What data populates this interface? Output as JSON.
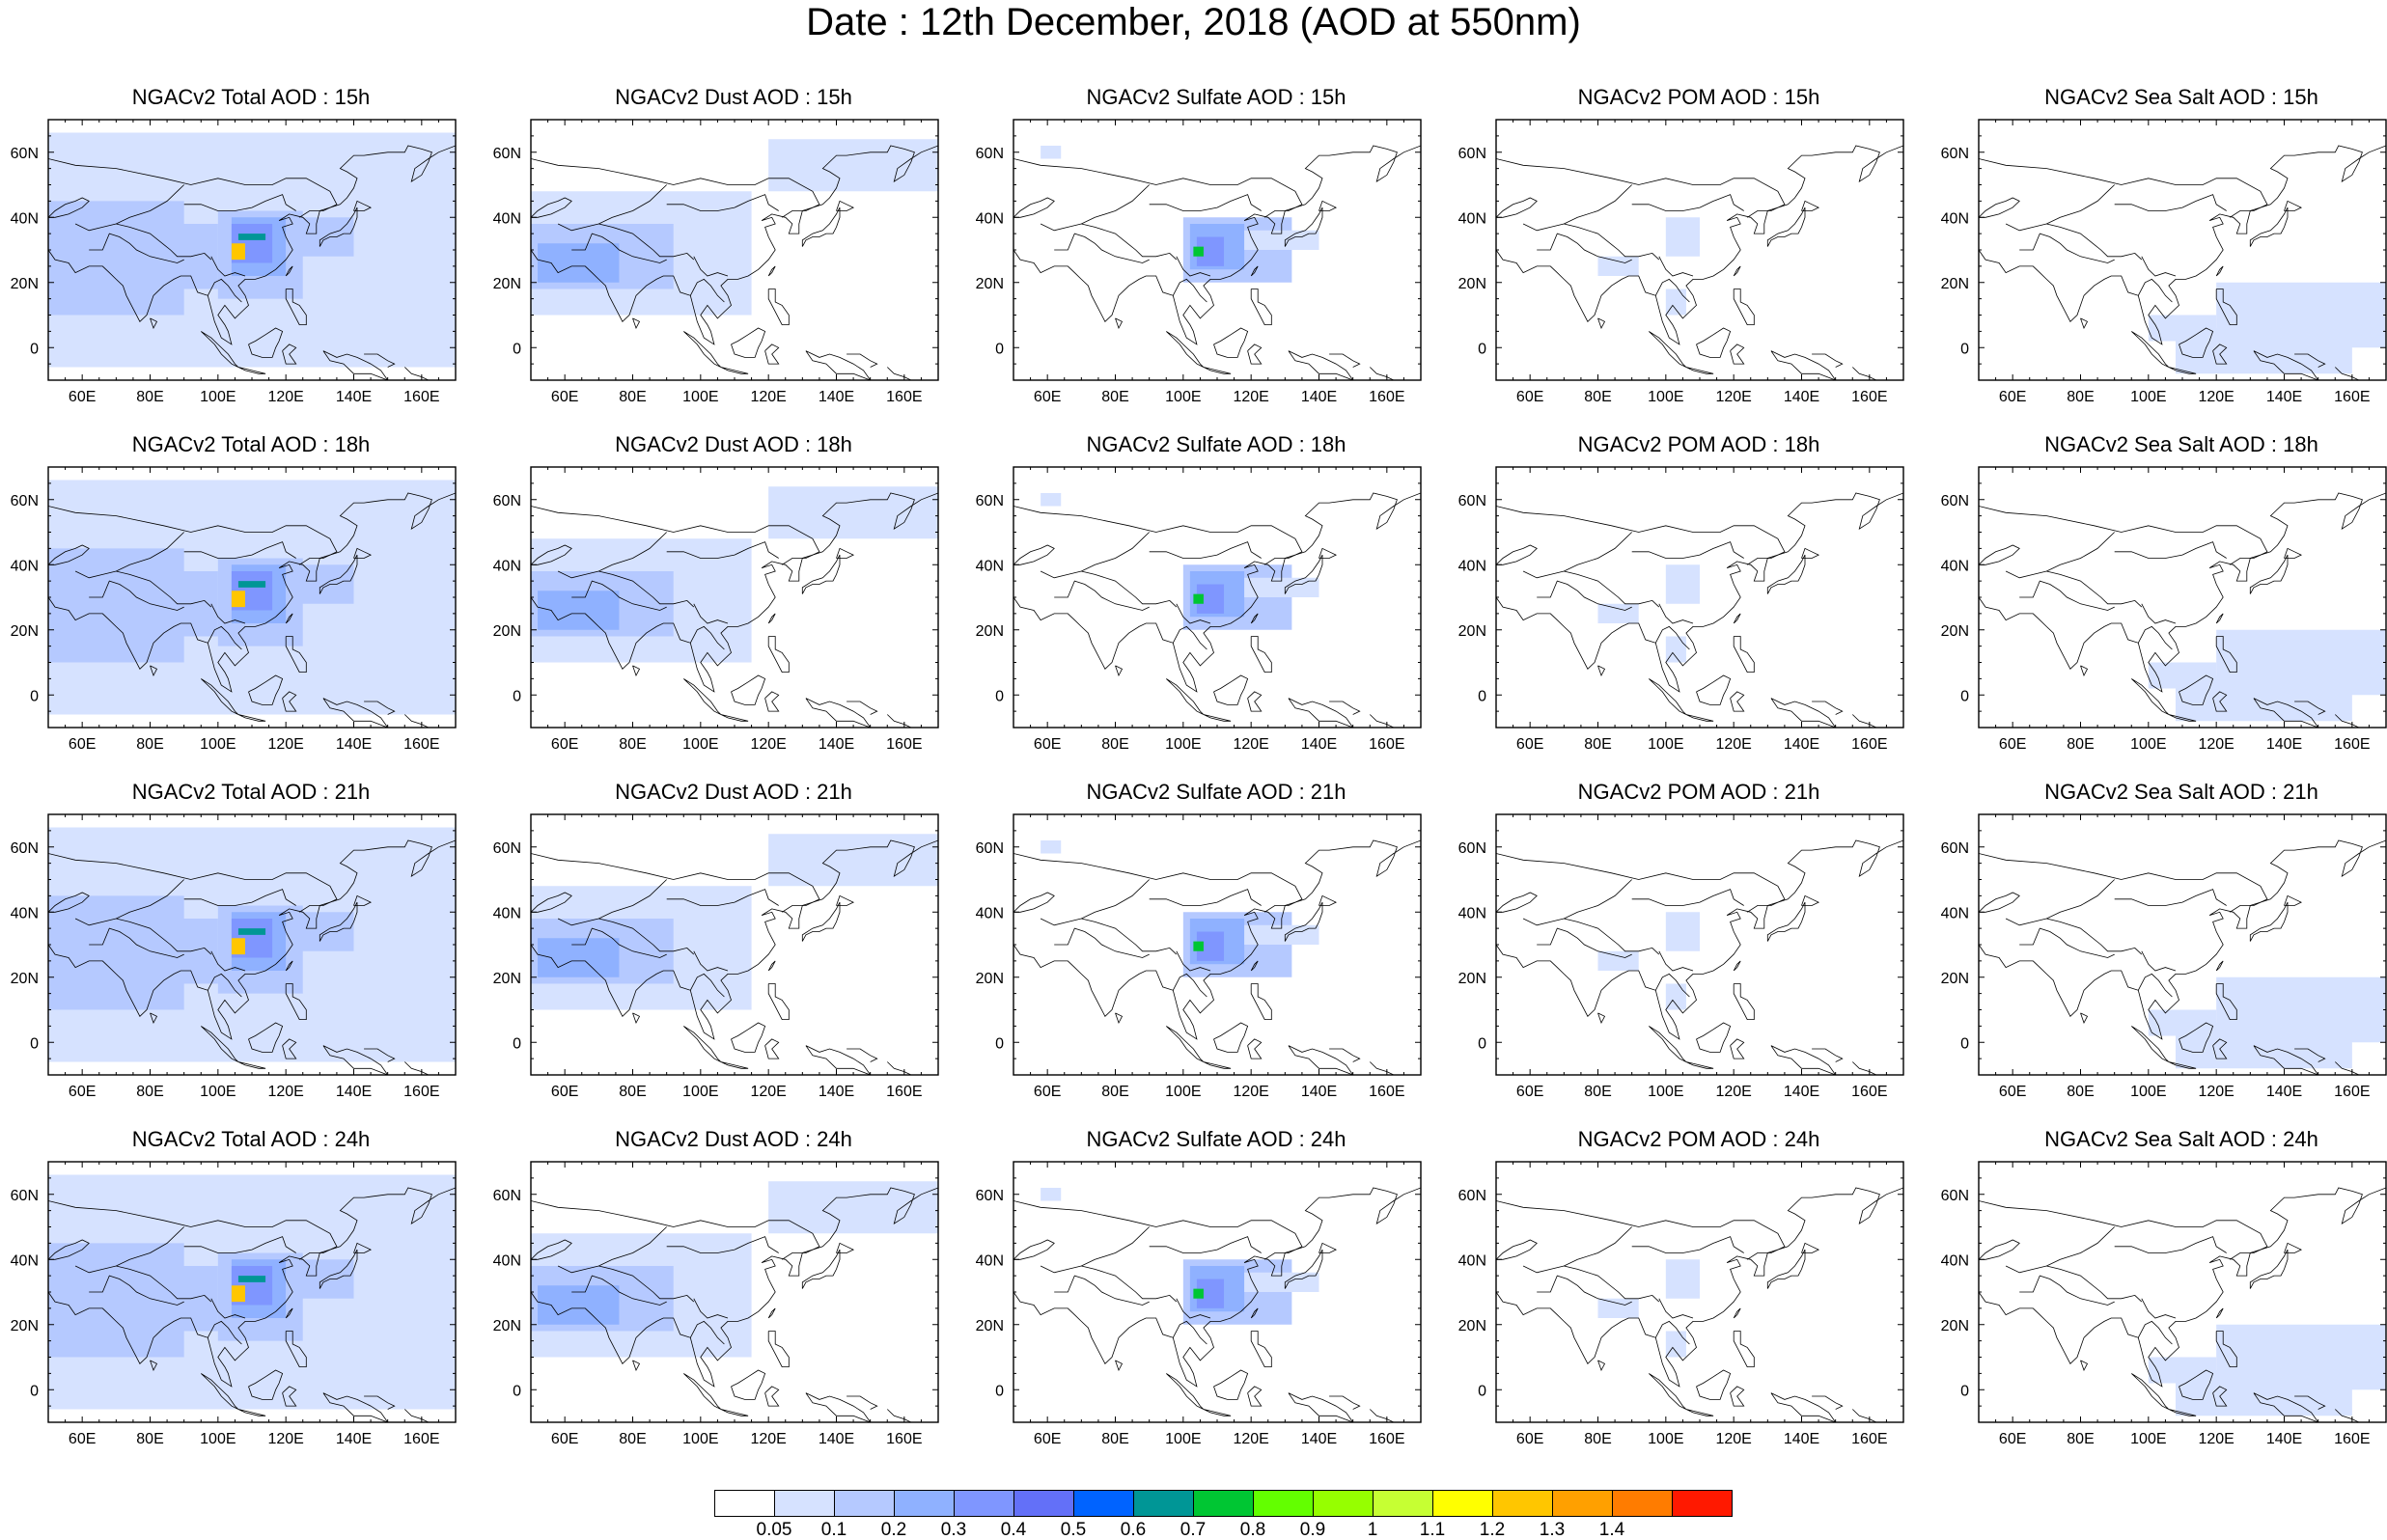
{
  "title": "Date : 12th December, 2018 (AOD at 550nm)",
  "lon_ticks": [
    "60E",
    "80E",
    "100E",
    "120E",
    "140E",
    "160E"
  ],
  "lat_ticks": [
    "60N",
    "40N",
    "20N",
    "0"
  ],
  "columns": [
    {
      "product": "Total",
      "titles": [
        "NGACv2 Total AOD : 15h",
        "NGACv2 Total AOD : 18h",
        "NGACv2 Total AOD : 21h",
        "NGACv2 Total AOD : 24h"
      ]
    },
    {
      "product": "Dust",
      "titles": [
        "NGACv2 Dust AOD : 15h",
        "NGACv2 Dust AOD : 18h",
        "NGACv2 Dust AOD : 21h",
        "NGACv2 Dust AOD : 24h"
      ]
    },
    {
      "product": "Sulfate",
      "titles": [
        "NGACv2 Sulfate AOD : 15h",
        "NGACv2 Sulfate AOD : 18h",
        "NGACv2 Sulfate AOD : 21h",
        "NGACv2 Sulfate AOD : 24h"
      ]
    },
    {
      "product": "POM",
      "titles": [
        "NGACv2 POM AOD : 15h",
        "NGACv2 POM AOD : 18h",
        "NGACv2 POM AOD : 21h",
        "NGACv2 POM AOD : 24h"
      ]
    },
    {
      "product": "Sea Salt",
      "titles": [
        "NGACv2 Sea Salt AOD : 15h",
        "NGACv2 Sea Salt AOD : 18h",
        "NGACv2 Sea Salt AOD : 21h",
        "NGACv2 Sea Salt  AOD : 24h"
      ]
    }
  ],
  "legend": {
    "labels": [
      "0.05",
      "0.1",
      "0.2",
      "0.3",
      "0.4",
      "0.5",
      "0.6",
      "0.7",
      "0.8",
      "0.9",
      "1",
      "1.1",
      "1.2",
      "1.3",
      "1.4"
    ],
    "colors": [
      "#ffffff",
      "#d6e2ff",
      "#b5c9ff",
      "#8fb1ff",
      "#7f96ff",
      "#6370f8",
      "#0063ff",
      "#009696",
      "#00c633",
      "#63ff00",
      "#96ff00",
      "#c6ff33",
      "#ffff00",
      "#ffc600",
      "#ffa000",
      "#ff7c00",
      "#ff1900"
    ]
  }
}
